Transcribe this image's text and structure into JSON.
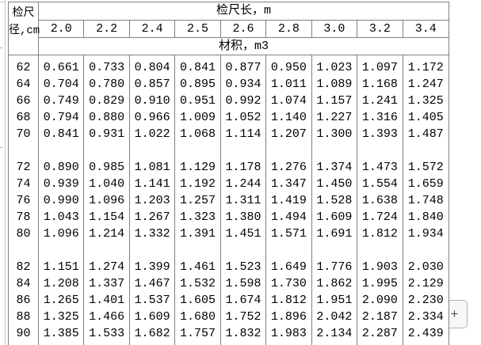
{
  "table": {
    "corner": {
      "line1": "检尺",
      "line2": "径,cm"
    },
    "length_header": "检尺长，m",
    "volume_header": "材积，m3",
    "length_columns": [
      "2.0",
      "2.2",
      "2.4",
      "2.5",
      "2.6",
      "2.8",
      "3.0",
      "3.2",
      "3.4"
    ],
    "row_groups": [
      [
        {
          "diameter": "62",
          "volumes": [
            "0.661",
            "0.733",
            "0.804",
            "0.841",
            "0.877",
            "0.950",
            "1.023",
            "1.097",
            "1.172"
          ]
        },
        {
          "diameter": "64",
          "volumes": [
            "0.704",
            "0.780",
            "0.857",
            "0.895",
            "0.934",
            "1.011",
            "1.089",
            "1.168",
            "1.247"
          ]
        },
        {
          "diameter": "66",
          "volumes": [
            "0.749",
            "0.829",
            "0.910",
            "0.951",
            "0.992",
            "1.074",
            "1.157",
            "1.241",
            "1.325"
          ]
        },
        {
          "diameter": "68",
          "volumes": [
            "0.794",
            "0.880",
            "0.966",
            "1.009",
            "1.052",
            "1.140",
            "1.227",
            "1.316",
            "1.405"
          ]
        },
        {
          "diameter": "70",
          "volumes": [
            "0.841",
            "0.931",
            "1.022",
            "1.068",
            "1.114",
            "1.207",
            "1.300",
            "1.393",
            "1.487"
          ]
        }
      ],
      [
        {
          "diameter": "72",
          "volumes": [
            "0.890",
            "0.985",
            "1.081",
            "1.129",
            "1.178",
            "1.276",
            "1.374",
            "1.473",
            "1.572"
          ]
        },
        {
          "diameter": "74",
          "volumes": [
            "0.939",
            "1.040",
            "1.141",
            "1.192",
            "1.244",
            "1.347",
            "1.450",
            "1.554",
            "1.659"
          ]
        },
        {
          "diameter": "76",
          "volumes": [
            "0.990",
            "1.096",
            "1.203",
            "1.257",
            "1.311",
            "1.419",
            "1.528",
            "1.638",
            "1.748"
          ]
        },
        {
          "diameter": "78",
          "volumes": [
            "1.043",
            "1.154",
            "1.267",
            "1.323",
            "1.380",
            "1.494",
            "1.609",
            "1.724",
            "1.840"
          ]
        },
        {
          "diameter": "80",
          "volumes": [
            "1.096",
            "1.214",
            "1.332",
            "1.391",
            "1.451",
            "1.571",
            "1.691",
            "1.812",
            "1.934"
          ]
        }
      ],
      [
        {
          "diameter": "82",
          "volumes": [
            "1.151",
            "1.274",
            "1.399",
            "1.461",
            "1.523",
            "1.649",
            "1.776",
            "1.903",
            "2.030"
          ]
        },
        {
          "diameter": "84",
          "volumes": [
            "1.208",
            "1.337",
            "1.467",
            "1.532",
            "1.598",
            "1.730",
            "1.862",
            "1.995",
            "2.129"
          ]
        },
        {
          "diameter": "86",
          "volumes": [
            "1.265",
            "1.401",
            "1.537",
            "1.605",
            "1.674",
            "1.812",
            "1.951",
            "2.090",
            "2.230"
          ]
        },
        {
          "diameter": "88",
          "volumes": [
            "1.325",
            "1.466",
            "1.609",
            "1.680",
            "1.752",
            "1.896",
            "2.042",
            "2.187",
            "2.334"
          ]
        },
        {
          "diameter": "90",
          "volumes": [
            "1.385",
            "1.533",
            "1.682",
            "1.757",
            "1.832",
            "1.983",
            "2.134",
            "2.287",
            "2.439"
          ]
        }
      ]
    ]
  },
  "controls": {
    "expand_button_label": "+"
  },
  "colors": {
    "table_border": "#808080",
    "text": "#000000",
    "frame_edge": "#c6c6c6",
    "button_border": "#b3b3b3",
    "button_bg": "#f7f7f7"
  }
}
